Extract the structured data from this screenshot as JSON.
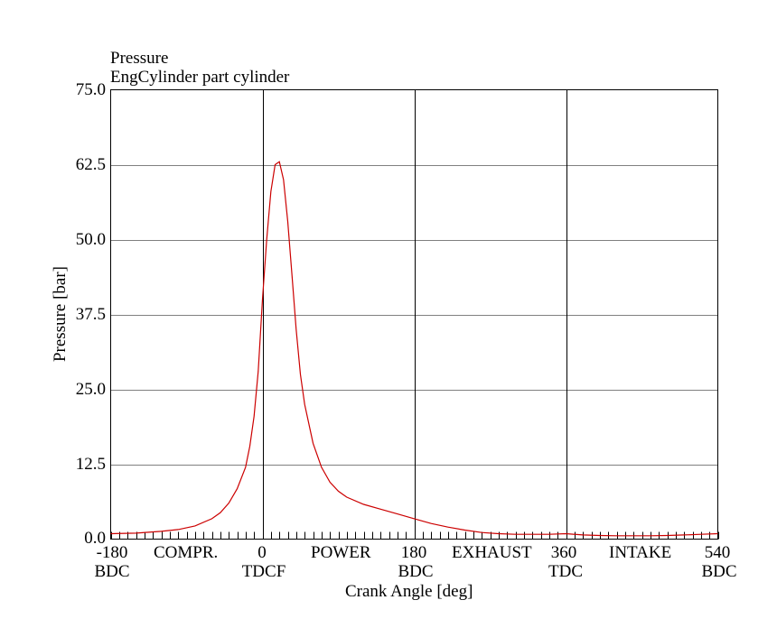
{
  "title": {
    "line1": "Pressure",
    "line2": "EngCylinder part cylinder"
  },
  "axes": {
    "ylabel": "Pressure [bar]",
    "xlabel": "Crank Angle [deg]",
    "yticks": [
      "75.0",
      "62.5",
      "50.0",
      "37.5",
      "25.0",
      "12.5",
      "0.0"
    ],
    "xticks": [
      {
        "value": "-180",
        "sub": "BDC"
      },
      {
        "value": "0",
        "sub": "TDCF"
      },
      {
        "value": "180",
        "sub": "BDC"
      },
      {
        "value": "360",
        "sub": "TDC"
      },
      {
        "value": "540",
        "sub": "BDC"
      }
    ],
    "phases": [
      "COMPR.",
      "POWER",
      "EXHAUST",
      "INTAKE"
    ]
  },
  "colors": {
    "curve": "#cc0000",
    "grid": "#808080",
    "frame": "#000000"
  },
  "chart_data": {
    "type": "line",
    "title": "Pressure - EngCylinder part cylinder",
    "xlabel": "Crank Angle [deg]",
    "ylabel": "Pressure [bar]",
    "xlim": [
      -180,
      540
    ],
    "ylim": [
      0,
      75
    ],
    "grid": true,
    "y_gridlines": [
      12.5,
      25.0,
      37.5,
      50.0,
      62.5
    ],
    "x_gridlines": [
      0,
      180,
      360
    ],
    "x_tick_labels": [
      "-180 BDC",
      "0 TDCF",
      "180 BDC",
      "360 TDC",
      "540 BDC"
    ],
    "phase_labels": [
      "COMPR.",
      "POWER",
      "EXHAUST",
      "INTAKE"
    ],
    "series": [
      {
        "name": "Pressure",
        "x": [
          -180,
          -150,
          -120,
          -100,
          -80,
          -60,
          -50,
          -40,
          -30,
          -20,
          -15,
          -10,
          -5,
          0,
          5,
          10,
          15,
          20,
          25,
          30,
          35,
          40,
          45,
          50,
          60,
          70,
          80,
          90,
          100,
          120,
          140,
          160,
          180,
          200,
          220,
          240,
          260,
          280,
          300,
          320,
          340,
          360,
          380,
          400,
          420,
          440,
          460,
          480,
          500,
          520,
          540
        ],
        "values": [
          0.9,
          1.0,
          1.3,
          1.6,
          2.2,
          3.4,
          4.4,
          6.0,
          8.4,
          12.0,
          15.5,
          20.5,
          28.0,
          40.0,
          50.0,
          58.0,
          62.5,
          63.0,
          60.0,
          53.0,
          44.0,
          35.0,
          27.5,
          22.5,
          16.0,
          12.0,
          9.5,
          8.0,
          7.0,
          5.8,
          5.0,
          4.2,
          3.4,
          2.6,
          2.0,
          1.5,
          1.1,
          0.9,
          0.8,
          0.8,
          0.8,
          0.9,
          0.7,
          0.6,
          0.55,
          0.55,
          0.55,
          0.6,
          0.7,
          0.8,
          0.9
        ]
      }
    ]
  }
}
